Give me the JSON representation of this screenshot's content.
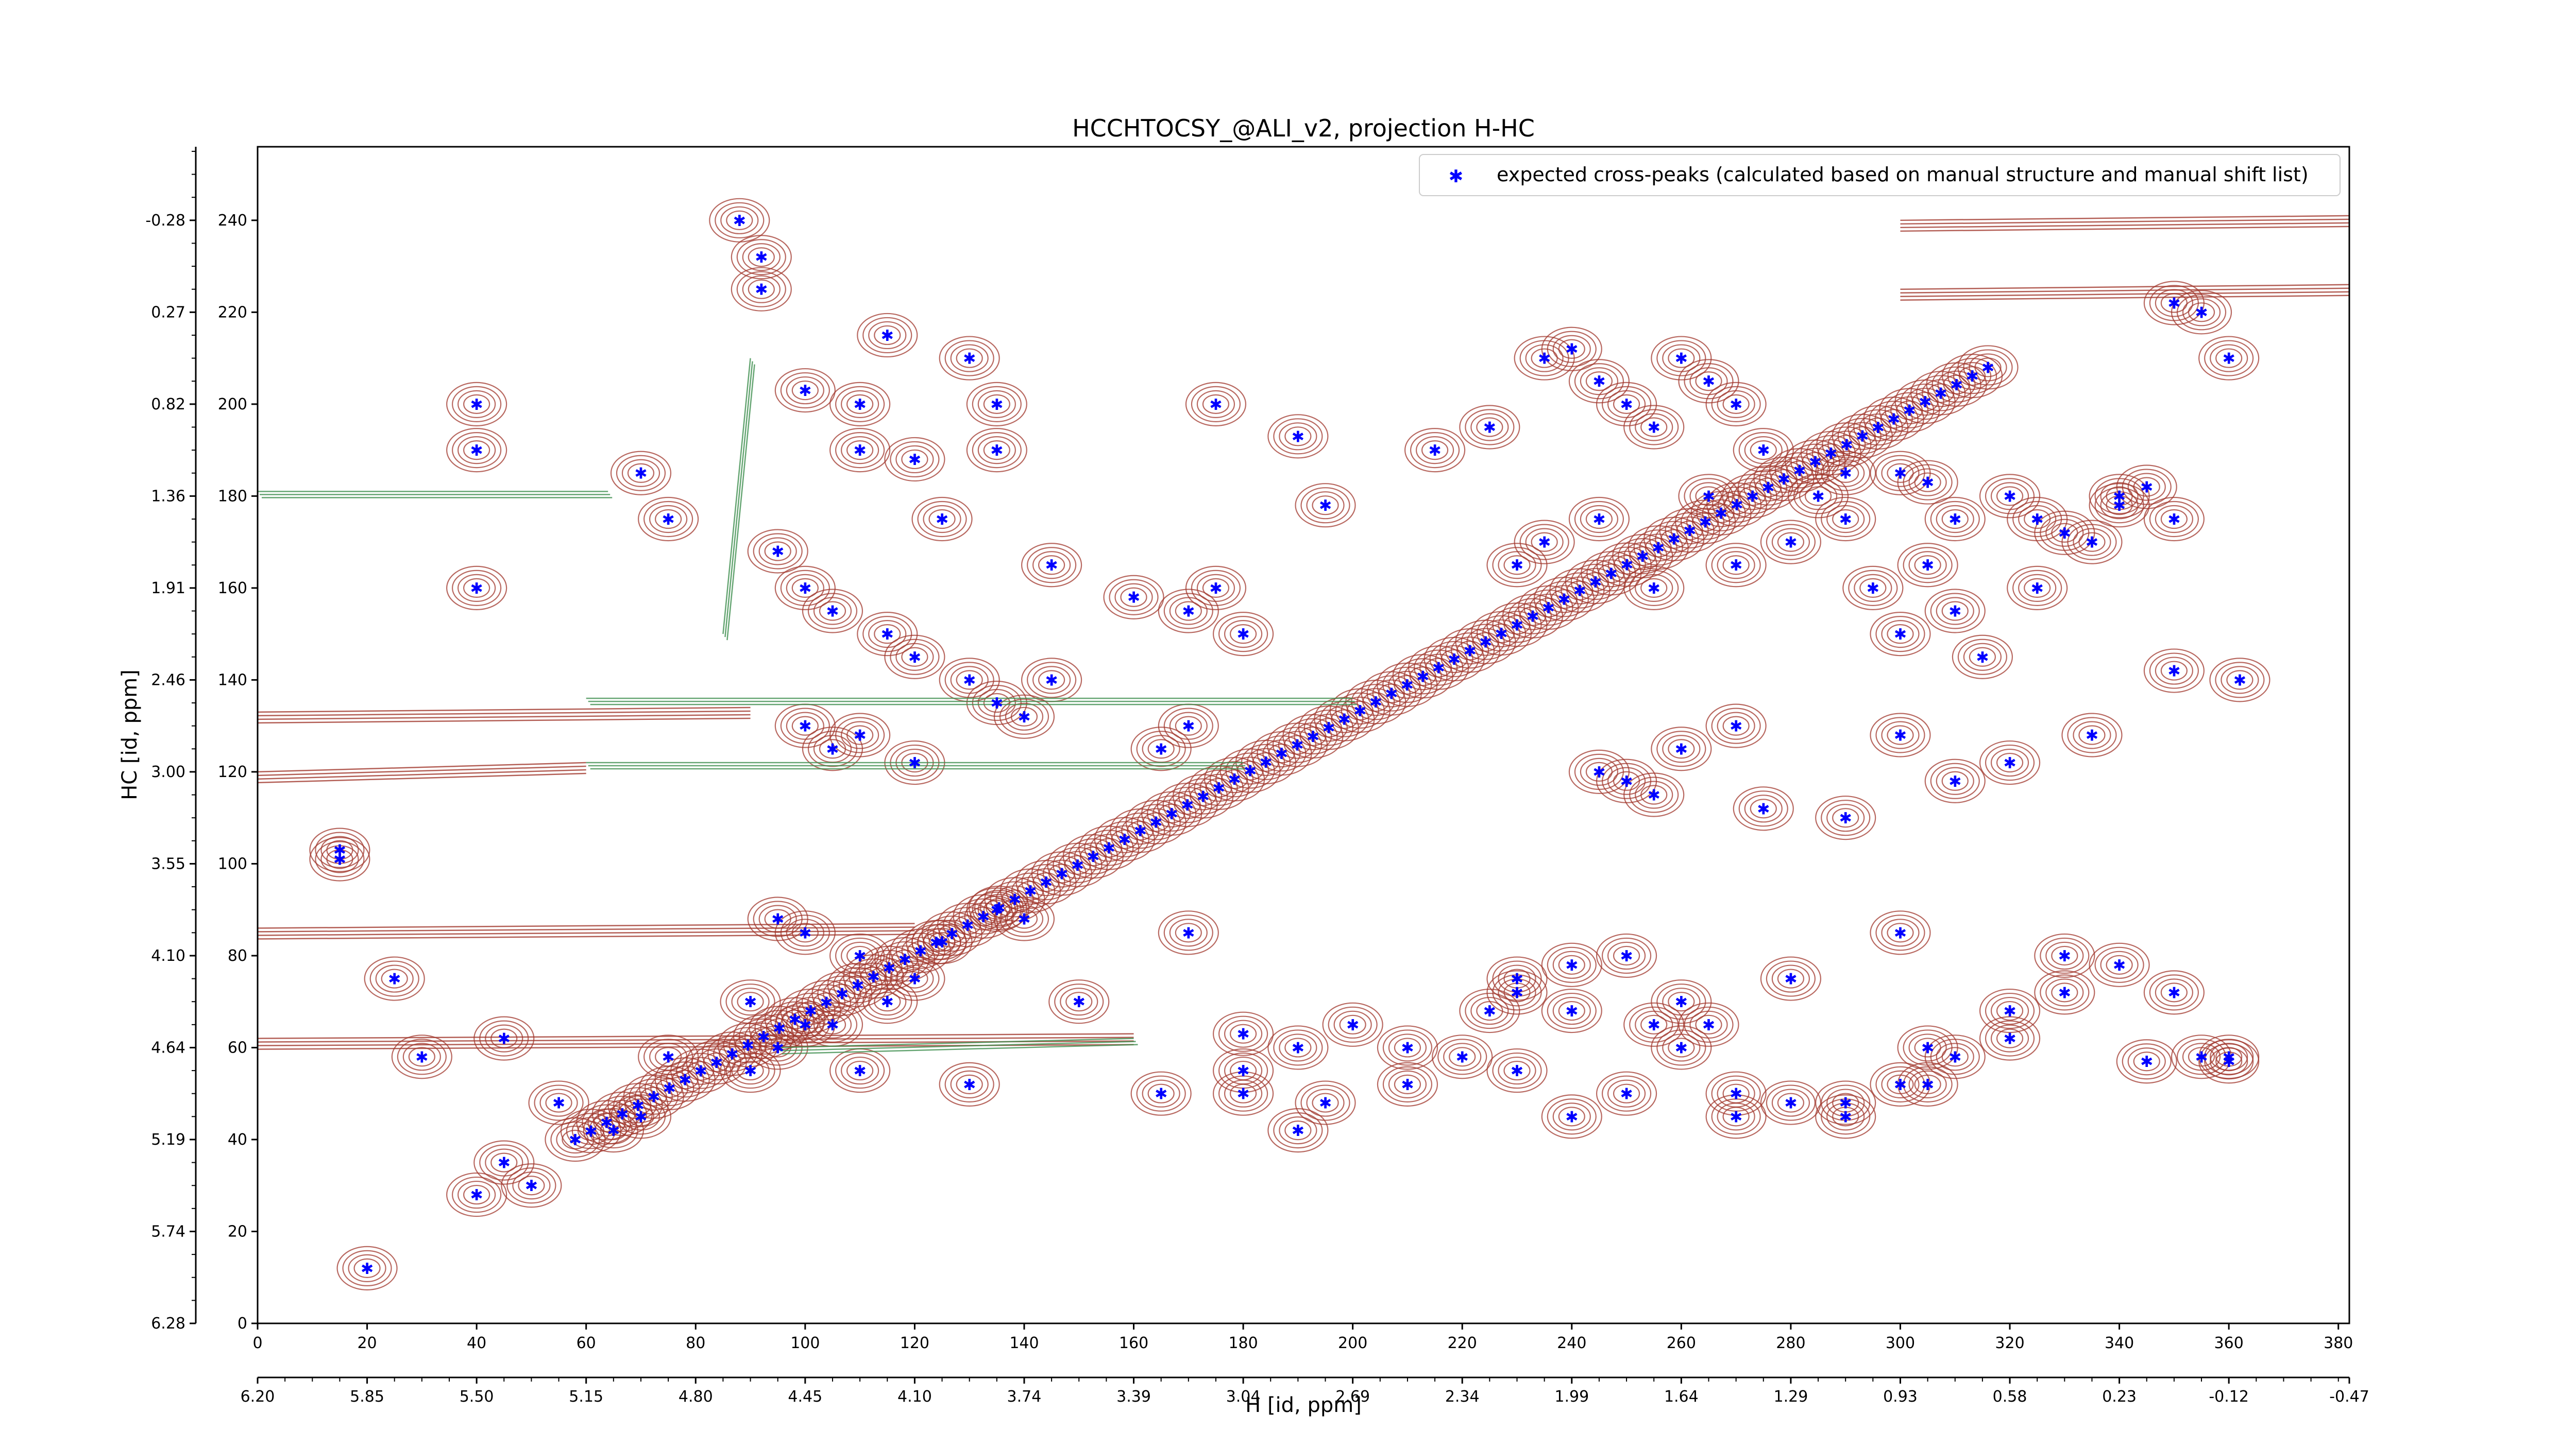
{
  "chart_data": {
    "type": "scatter",
    "title": "HCCHTOCSY_@ALI_v2, projection H-HC",
    "xlabel": "H [id, ppm]",
    "ylabel": "HC [id, ppm]",
    "xlim": [
      0,
      382
    ],
    "ylim": [
      0,
      256
    ],
    "x_ticks": [
      0,
      20,
      40,
      60,
      80,
      100,
      120,
      140,
      160,
      180,
      200,
      220,
      240,
      260,
      280,
      300,
      320,
      340,
      360,
      380
    ],
    "y_ticks": [
      0,
      20,
      40,
      60,
      80,
      100,
      120,
      140,
      160,
      180,
      200,
      220,
      240
    ],
    "x_ppm_ticks": [
      {
        "pos": 0,
        "label": "6.20"
      },
      {
        "pos": 20,
        "label": "5.85"
      },
      {
        "pos": 40,
        "label": "5.50"
      },
      {
        "pos": 60,
        "label": "5.15"
      },
      {
        "pos": 80,
        "label": "4.80"
      },
      {
        "pos": 100,
        "label": "4.45"
      },
      {
        "pos": 120,
        "label": "4.10"
      },
      {
        "pos": 140,
        "label": "3.74"
      },
      {
        "pos": 160,
        "label": "3.39"
      },
      {
        "pos": 180,
        "label": "3.04"
      },
      {
        "pos": 200,
        "label": "2.69"
      },
      {
        "pos": 220,
        "label": "2.34"
      },
      {
        "pos": 240,
        "label": "1.99"
      },
      {
        "pos": 260,
        "label": "1.64"
      },
      {
        "pos": 280,
        "label": "1.29"
      },
      {
        "pos": 300,
        "label": "0.93"
      },
      {
        "pos": 320,
        "label": "0.58"
      },
      {
        "pos": 340,
        "label": "0.23"
      },
      {
        "pos": 360,
        "label": "-0.12"
      },
      {
        "pos": 382,
        "label": "-0.47"
      }
    ],
    "y_ppm_ticks": [
      {
        "pos": 0,
        "label": "6.28"
      },
      {
        "pos": 20,
        "label": "5.74"
      },
      {
        "pos": 40,
        "label": "5.19"
      },
      {
        "pos": 60,
        "label": "4.64"
      },
      {
        "pos": 80,
        "label": "4.10"
      },
      {
        "pos": 100,
        "label": "3.55"
      },
      {
        "pos": 120,
        "label": "3.00"
      },
      {
        "pos": 140,
        "label": "2.46"
      },
      {
        "pos": 160,
        "label": "1.91"
      },
      {
        "pos": 180,
        "label": "1.36"
      },
      {
        "pos": 200,
        "label": "0.82"
      },
      {
        "pos": 220,
        "label": "0.27"
      },
      {
        "pos": 240,
        "label": "-0.28"
      }
    ],
    "legend": {
      "position": "top-right",
      "label": "expected cross-peaks (calculated based on manual structure and manual shift list)"
    },
    "colors": {
      "marker": "#0000ff",
      "contour_positive": "#a0362b",
      "contour_negative": "#3f8f4f"
    },
    "grid": false,
    "series": [
      {
        "name": "expected cross-peaks (calculated based on manual structure and manual shift list)",
        "x": [
          15,
          40,
          40,
          40,
          88,
          92,
          92,
          100,
          110,
          110,
          115,
          120,
          125,
          130,
          135,
          135,
          145,
          175,
          190,
          195,
          215,
          225,
          235,
          240,
          245,
          250,
          255,
          260,
          265,
          270,
          275,
          285,
          290,
          300,
          305,
          310,
          320,
          325,
          330,
          335,
          340,
          345,
          350,
          355,
          360,
          70,
          75,
          95,
          100,
          105,
          115,
          120,
          130,
          170,
          175,
          180,
          230,
          235,
          245,
          255,
          265,
          270,
          280,
          290,
          295,
          300,
          305,
          310,
          315,
          325,
          340,
          350,
          100,
          105,
          110,
          120,
          135,
          140,
          145,
          160,
          165,
          170,
          245,
          250,
          255,
          260,
          270,
          275,
          290,
          300,
          310,
          320,
          335,
          350,
          362,
          15,
          45,
          50,
          65,
          70,
          90,
          95,
          105,
          115,
          130,
          180,
          190,
          195,
          210,
          225,
          230,
          240,
          250,
          260,
          265,
          280,
          300,
          305,
          320,
          330,
          350,
          360,
          25,
          30,
          45,
          55,
          95,
          100,
          110,
          120,
          135,
          140,
          150,
          165,
          180,
          200,
          230,
          240,
          250,
          260,
          270,
          290,
          300,
          310,
          320,
          330,
          345,
          360,
          20,
          40,
          75,
          90,
          100,
          110,
          125,
          170,
          180,
          190,
          210,
          220,
          230,
          240,
          255,
          270,
          280,
          290,
          305,
          340,
          355
        ],
        "y": [
          101,
          160,
          190,
          200,
          240,
          225,
          232,
          203,
          200,
          190,
          215,
          188,
          175,
          210,
          200,
          190,
          165,
          200,
          193,
          178,
          190,
          195,
          210,
          212,
          205,
          200,
          195,
          210,
          205,
          200,
          190,
          180,
          175,
          185,
          183,
          175,
          180,
          175,
          172,
          170,
          180,
          182,
          222,
          220,
          210,
          185,
          175,
          168,
          160,
          155,
          150,
          145,
          140,
          155,
          160,
          150,
          165,
          170,
          175,
          160,
          180,
          165,
          170,
          185,
          160,
          150,
          165,
          155,
          145,
          160,
          178,
          175,
          130,
          125,
          128,
          122,
          135,
          132,
          140,
          158,
          125,
          130,
          120,
          118,
          115,
          125,
          130,
          112,
          110,
          128,
          118,
          122,
          128,
          142,
          140,
          103,
          35,
          30,
          42,
          45,
          55,
          60,
          65,
          70,
          52,
          55,
          42,
          48,
          60,
          68,
          75,
          78,
          80,
          70,
          65,
          75,
          85,
          60,
          62,
          80,
          72,
          57,
          75,
          58,
          62,
          48,
          88,
          85,
          80,
          75,
          90,
          88,
          70,
          50,
          50,
          65,
          55,
          45,
          50,
          60,
          45,
          48,
          52,
          58,
          68,
          72,
          57,
          58,
          12,
          28,
          58,
          70,
          65,
          55,
          83,
          85,
          63,
          60,
          52,
          58,
          72,
          68,
          65,
          50,
          48,
          45,
          52,
          78,
          58
        ],
        "diagonal": {
          "from": [
            58,
            40
          ],
          "to": [
            316,
            208
          ],
          "step_count": 90
        }
      }
    ]
  }
}
